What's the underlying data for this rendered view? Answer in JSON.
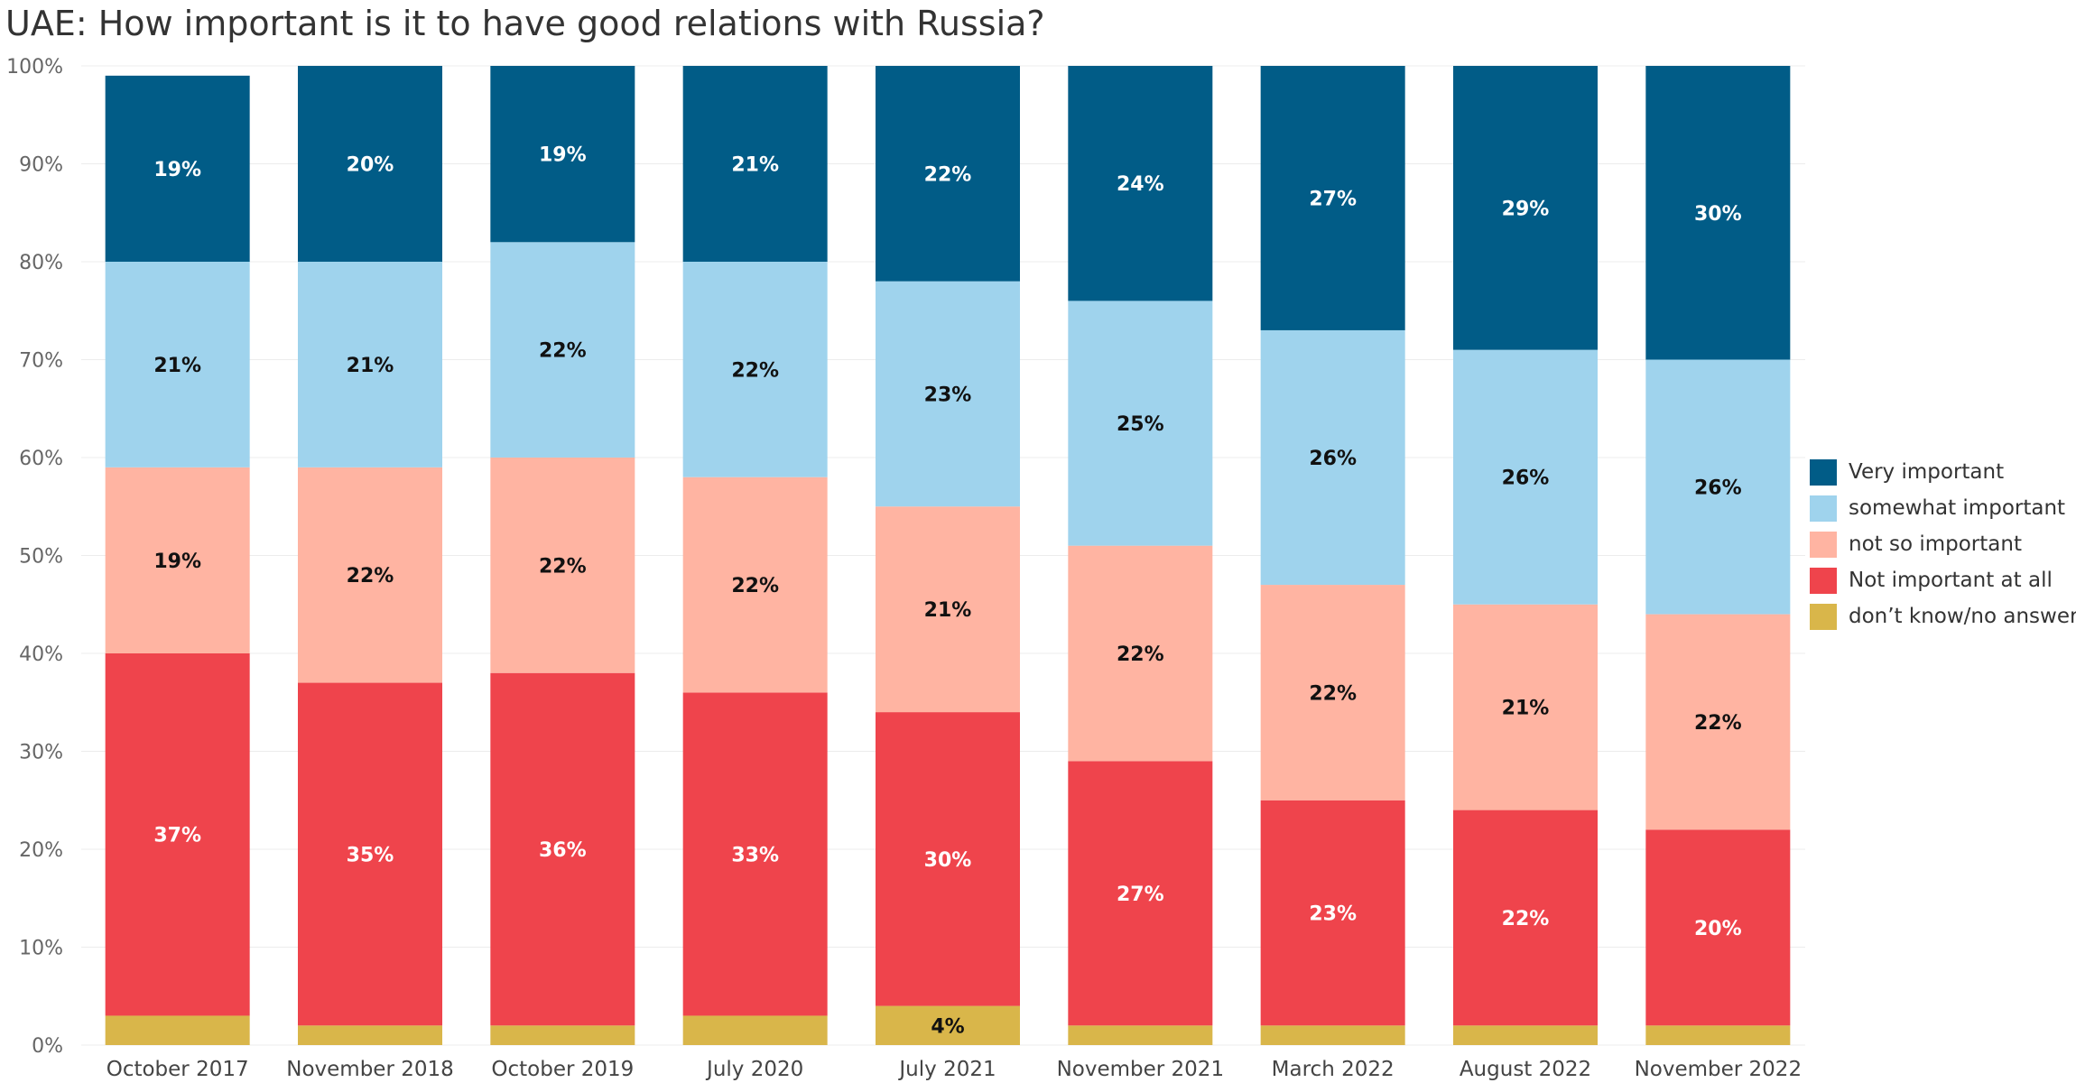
{
  "title": "UAE: How important is it to have good relations with Russia?",
  "chart_data": {
    "type": "bar",
    "stacked": true,
    "title": "UAE: How important is it to have good relations with Russia?",
    "xlabel": "",
    "ylabel": "",
    "ylim": [
      0,
      100
    ],
    "y_ticks": [
      "0%",
      "10%",
      "20%",
      "30%",
      "40%",
      "50%",
      "60%",
      "70%",
      "80%",
      "90%",
      "100%"
    ],
    "grid": true,
    "legend_position": "right",
    "categories": [
      "October 2017",
      "November 2018",
      "October 2019",
      "July 2020",
      "July 2021",
      "November 2021",
      "March 2022",
      "August 2022",
      "November 2022"
    ],
    "series": [
      {
        "name": "don’t know/no answer",
        "color": "#d9b64a",
        "label_color": "#111111",
        "values": [
          3,
          2,
          2,
          3,
          4,
          2,
          2,
          2,
          2
        ],
        "labels": [
          "",
          "",
          "",
          "",
          "4%",
          "",
          "",
          "",
          ""
        ]
      },
      {
        "name": "Not important at all",
        "color": "#ef444c",
        "label_color": "#ffffff",
        "values": [
          37,
          35,
          36,
          33,
          30,
          27,
          23,
          22,
          20
        ],
        "labels": [
          "37%",
          "35%",
          "36%",
          "33%",
          "30%",
          "27%",
          "23%",
          "22%",
          "20%"
        ]
      },
      {
        "name": "not so important",
        "color": "#ffb4a2",
        "label_color": "#111111",
        "values": [
          19,
          22,
          22,
          22,
          21,
          22,
          22,
          21,
          22
        ],
        "labels": [
          "19%",
          "22%",
          "22%",
          "22%",
          "21%",
          "22%",
          "22%",
          "21%",
          "22%"
        ]
      },
      {
        "name": "somewhat important",
        "color": "#9fd3ed",
        "label_color": "#111111",
        "values": [
          21,
          21,
          22,
          22,
          23,
          25,
          26,
          26,
          26
        ],
        "labels": [
          "21%",
          "21%",
          "22%",
          "22%",
          "23%",
          "25%",
          "26%",
          "26%",
          "26%"
        ]
      },
      {
        "name": "Very important",
        "color": "#015c87",
        "label_color": "#ffffff",
        "values": [
          19,
          20,
          19,
          21,
          22,
          24,
          27,
          29,
          30
        ],
        "labels": [
          "19%",
          "20%",
          "19%",
          "21%",
          "22%",
          "24%",
          "27%",
          "29%",
          "30%"
        ]
      }
    ]
  },
  "legend": [
    {
      "label": "Very important",
      "color": "#015c87"
    },
    {
      "label": "somewhat important",
      "color": "#9fd3ed"
    },
    {
      "label": "not so important",
      "color": "#ffb4a2"
    },
    {
      "label": "Not important at all",
      "color": "#ef444c"
    },
    {
      "label": "don’t know/no answer",
      "color": "#d9b64a"
    }
  ]
}
